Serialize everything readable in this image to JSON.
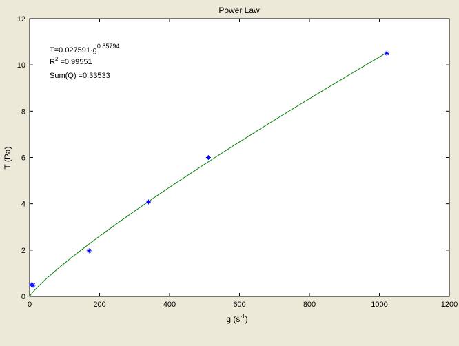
{
  "chart_data": {
    "type": "scatter",
    "title": "Power Law",
    "xlabel": "g (s",
    "xlabel_sup": "-1",
    "xlabel_close": ")",
    "ylabel": "T (Pa)",
    "xlim": [
      0,
      1200
    ],
    "ylim": [
      0,
      12
    ],
    "x_ticks": [
      "0",
      "200",
      "400",
      "600",
      "800",
      "1000",
      "1200"
    ],
    "y_ticks": [
      "0",
      "2",
      "4",
      "6",
      "8",
      "10",
      "12"
    ],
    "grid": false,
    "colors": {
      "points": "#0000ff",
      "fit": "#008000",
      "background": "#ece9d8",
      "plot_area": "#ffffff"
    },
    "series": [
      {
        "type": "scatter",
        "marker": "asterisk",
        "points": [
          {
            "x": 5,
            "y": 0.5
          },
          {
            "x": 10,
            "y": 0.48
          },
          {
            "x": 170,
            "y": 1.97
          },
          {
            "x": 340,
            "y": 4.08
          },
          {
            "x": 511,
            "y": 6.0
          },
          {
            "x": 1021,
            "y": 10.5
          }
        ]
      },
      {
        "type": "line",
        "model": "power",
        "coefficient": 0.027591,
        "exponent": 0.85794,
        "x_range": [
          0,
          1021
        ]
      }
    ],
    "annotations": {
      "equation_base": "T=0.027591·g",
      "equation_exp": "0.85794",
      "r2_label": "R",
      "r2_sup": "2",
      "r2_value": " =0.99551",
      "sumq": "Sum(Q) =0.33533"
    }
  }
}
